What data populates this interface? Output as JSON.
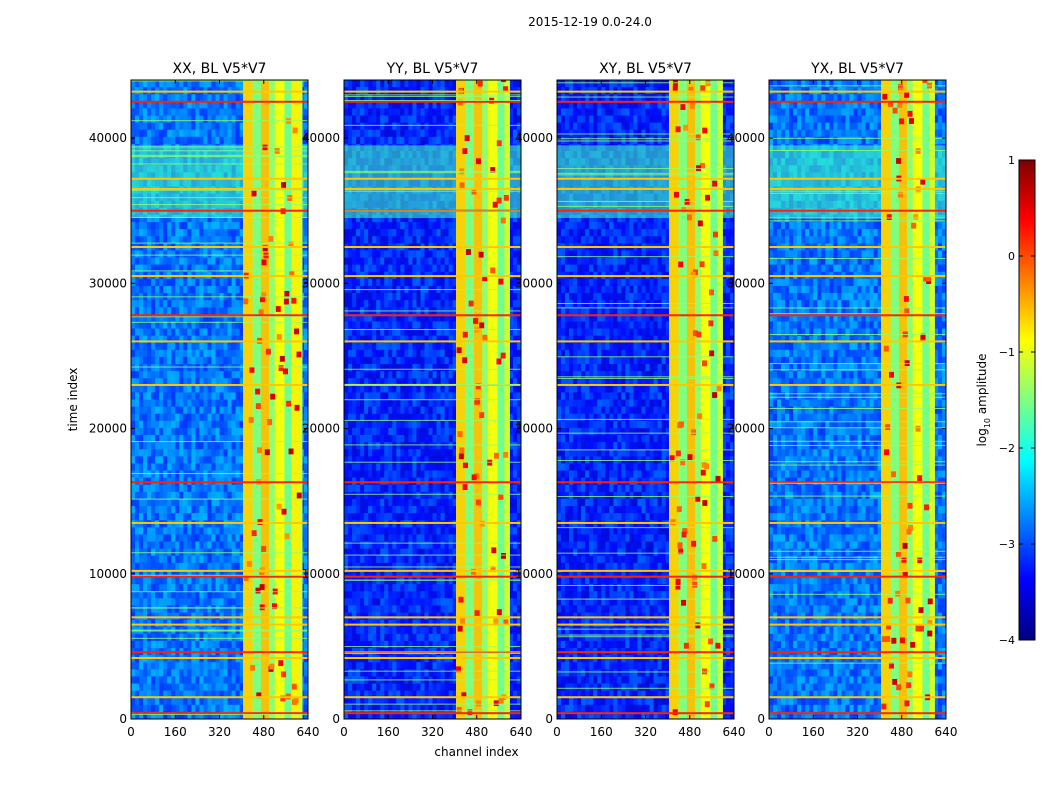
{
  "figure": {
    "title": "2015-12-19 0.0-24.0"
  },
  "chart_data": [
    {
      "type": "heatmap",
      "title": "XX, BL V5*V7",
      "xlabel": "",
      "ylabel": "time index",
      "xlim": [
        0,
        640
      ],
      "ylim": [
        0,
        44000
      ],
      "xticks": [
        0,
        160,
        320,
        480,
        640
      ],
      "yticks": [
        0,
        10000,
        20000,
        30000,
        40000
      ],
      "value_range": [
        -4,
        1
      ],
      "rfi_channel_band": [
        405,
        620
      ],
      "rfi_time_rows": [
        400,
        1500,
        4200,
        4600,
        6500,
        7000,
        9800,
        10200,
        13500,
        16300,
        23000,
        26000,
        27800,
        30500,
        32500,
        35000,
        36500,
        37200,
        42500,
        43200
      ]
    },
    {
      "type": "heatmap",
      "title": "YY, BL V5*V7",
      "xlabel": "channel index",
      "ylabel": "",
      "xlim": [
        0,
        640
      ],
      "ylim": [
        0,
        44000
      ],
      "xticks": [
        0,
        160,
        320,
        480,
        640
      ],
      "yticks": [
        0,
        10000,
        20000,
        30000,
        40000
      ],
      "value_range": [
        -4,
        1
      ],
      "rfi_channel_band": [
        405,
        600
      ],
      "rfi_time_rows": [
        400,
        1500,
        4200,
        4600,
        6500,
        7000,
        9800,
        10200,
        13500,
        16300,
        23000,
        26000,
        27800,
        30500,
        32500,
        35000,
        36500,
        37200,
        42500,
        43200
      ]
    },
    {
      "type": "heatmap",
      "title": "XY, BL V5*V7",
      "xlabel": "",
      "ylabel": "",
      "xlim": [
        0,
        640
      ],
      "ylim": [
        0,
        44000
      ],
      "xticks": [
        0,
        160,
        320,
        480,
        640
      ],
      "yticks": [
        0,
        10000,
        20000,
        30000,
        40000
      ],
      "value_range": [
        -4,
        1
      ],
      "rfi_channel_band": [
        405,
        600
      ],
      "rfi_time_rows": [
        400,
        1500,
        4200,
        4600,
        6500,
        7000,
        9800,
        10200,
        13500,
        16300,
        23000,
        26000,
        27800,
        30500,
        32500,
        35000,
        36500,
        37200,
        42500,
        43200
      ]
    },
    {
      "type": "heatmap",
      "title": "YX, BL V5*V7",
      "xlabel": "",
      "ylabel": "",
      "xlim": [
        0,
        640
      ],
      "ylim": [
        0,
        44000
      ],
      "xticks": [
        0,
        160,
        320,
        480,
        640
      ],
      "yticks": [
        0,
        10000,
        20000,
        30000,
        40000
      ],
      "value_range": [
        -4,
        1
      ],
      "rfi_channel_band": [
        405,
        600
      ],
      "rfi_time_rows": [
        400,
        1500,
        4200,
        4600,
        6500,
        7000,
        9800,
        10200,
        13500,
        16300,
        23000,
        26000,
        27800,
        30500,
        32500,
        35000,
        36500,
        37200,
        42500,
        43200
      ]
    }
  ],
  "colorbar": {
    "label": "log",
    "label_sub": "10",
    "label_tail": " amplitude",
    "min": -4,
    "max": 1,
    "ticks": [
      1,
      0,
      -1,
      -2,
      -3,
      -4
    ],
    "tick_labels": [
      "1",
      "0",
      "−1",
      "−2",
      "−3",
      "−4"
    ],
    "colormap": "jet",
    "colors": [
      "#00007f",
      "#0000ff",
      "#007fff",
      "#00ffff",
      "#7fff7f",
      "#ffff00",
      "#ff7f00",
      "#ff0000",
      "#7f0000"
    ]
  }
}
